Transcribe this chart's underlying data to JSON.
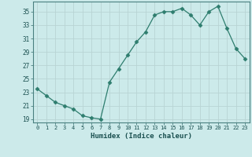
{
  "x": [
    0,
    1,
    2,
    3,
    4,
    5,
    6,
    7,
    8,
    9,
    10,
    11,
    12,
    13,
    14,
    15,
    16,
    17,
    18,
    19,
    20,
    21,
    22,
    23
  ],
  "y": [
    23.5,
    22.5,
    21.5,
    21.0,
    20.5,
    19.5,
    19.2,
    19.0,
    24.5,
    26.5,
    28.5,
    30.5,
    32.0,
    34.5,
    35.0,
    35.0,
    35.5,
    34.5,
    33.0,
    35.0,
    35.8,
    32.5,
    29.5,
    28.0
  ],
  "xlabel": "Humidex (Indice chaleur)",
  "line_color": "#2e7d6e",
  "marker": "D",
  "marker_size": 2.5,
  "bg_color": "#cceaea",
  "grid_color": "#b8d4d4",
  "ylim": [
    18.5,
    36.5
  ],
  "yticks": [
    19,
    21,
    23,
    25,
    27,
    29,
    31,
    33,
    35
  ],
  "xticks": [
    0,
    1,
    2,
    3,
    4,
    5,
    6,
    7,
    8,
    9,
    10,
    11,
    12,
    13,
    14,
    15,
    16,
    17,
    18,
    19,
    20,
    21,
    22,
    23
  ],
  "xlim": [
    -0.5,
    23.5
  ],
  "tick_label_color": "#1a5050",
  "xlabel_color": "#1a5050"
}
